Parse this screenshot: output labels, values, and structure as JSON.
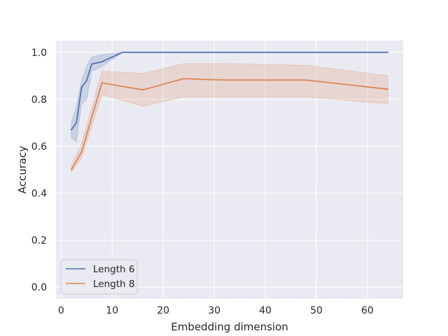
{
  "chart_data": {
    "type": "line",
    "title": "",
    "xlabel": "Embedding dimension",
    "ylabel": "Accuracy",
    "xlim": [
      -1,
      67
    ],
    "ylim": [
      -0.05,
      1.05
    ],
    "xticks": [
      0,
      10,
      20,
      30,
      40,
      50,
      60
    ],
    "yticks": [
      0.0,
      0.2,
      0.4,
      0.6,
      0.8,
      1.0
    ],
    "xtick_labels": [
      "0",
      "10",
      "20",
      "30",
      "40",
      "50",
      "60"
    ],
    "ytick_labels": [
      "0.0",
      "0.2",
      "0.4",
      "0.6",
      "0.8",
      "1.0"
    ],
    "grid": true,
    "background": "#eaeaf2",
    "legend_position": "lower-left",
    "series": [
      {
        "name": "Length 6",
        "color": "#4c72b0",
        "x": [
          2,
          3,
          4,
          5,
          6,
          8,
          12,
          16,
          24,
          32,
          48,
          64
        ],
        "y": [
          0.67,
          0.7,
          0.85,
          0.88,
          0.95,
          0.96,
          1.0,
          1.0,
          1.0,
          1.0,
          1.0,
          1.0
        ],
        "ci_lower": [
          0.635,
          0.62,
          0.78,
          0.8,
          0.92,
          0.94,
          1.0,
          1.0,
          1.0,
          1.0,
          1.0,
          1.0
        ],
        "ci_upper": [
          0.7,
          0.77,
          0.88,
          0.94,
          0.98,
          0.99,
          1.0,
          1.0,
          1.0,
          1.0,
          1.0,
          1.0
        ]
      },
      {
        "name": "Length 8",
        "color": "#dd8452",
        "x": [
          2,
          4,
          8,
          16,
          24,
          32,
          48,
          64
        ],
        "y": [
          0.5,
          0.575,
          0.87,
          0.84,
          0.888,
          0.882,
          0.882,
          0.843
        ],
        "ci_lower": [
          0.49,
          0.55,
          0.82,
          0.77,
          0.81,
          0.81,
          0.81,
          0.78
        ],
        "ci_upper": [
          0.52,
          0.61,
          0.92,
          0.91,
          0.952,
          0.952,
          0.945,
          0.9
        ]
      }
    ]
  }
}
